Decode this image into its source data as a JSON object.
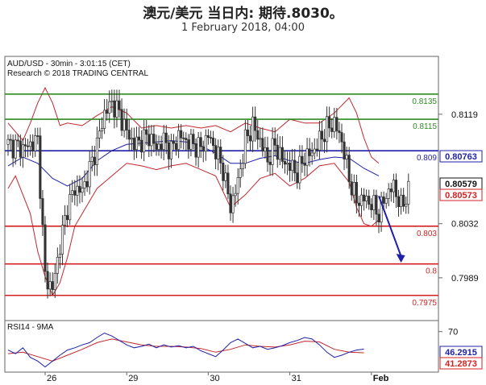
{
  "header": {
    "title": "澳元/美元 当日内: 期待.8030。",
    "subtitle": "1 February 2018, 04:00"
  },
  "chart_data": {
    "type": "candlestick",
    "instrument_label": "AUD/USD - 30min - 3:01:15 (CET)",
    "source_label": "Research © 2018 TRADING CENTRAL",
    "ylim": [
      0.7955,
      0.8165
    ],
    "y_ticks": [
      {
        "value": 0.8119,
        "label": "0.8119"
      },
      {
        "value": 0.8032,
        "label": "0.8032"
      },
      {
        "value": 0.7989,
        "label": "0.7989"
      }
    ],
    "levels": [
      {
        "value": 0.8135,
        "label": "0.8135",
        "color": "#2e8b22"
      },
      {
        "value": 0.8115,
        "label": "0.8115",
        "color": "#2e8b22"
      },
      {
        "value": 0.809,
        "label": "0.809",
        "color": "#1f1fa8"
      },
      {
        "value": 0.803,
        "label": "0.803",
        "color": "#d42222"
      },
      {
        "value": 0.8,
        "label": "0.8",
        "color": "#d42222"
      },
      {
        "value": 0.7975,
        "label": "0.7975",
        "color": "#d42222"
      }
    ],
    "price_badges": [
      {
        "value": 0.80763,
        "label": "0.80763",
        "color": "#1f1fa8"
      },
      {
        "value": 0.80579,
        "label": "0.80579",
        "color": "#111111"
      },
      {
        "value": 0.80573,
        "label": "0.80573",
        "color": "#d42222"
      }
    ],
    "x_labels": [
      {
        "bar": 5,
        "label": "26"
      },
      {
        "bar": 16,
        "label": "29"
      },
      {
        "bar": 27,
        "label": "30"
      },
      {
        "bar": 38,
        "label": "31"
      },
      {
        "bar": 49,
        "label": "Feb"
      }
    ],
    "price_series": [
      [
        0,
        0.8095
      ],
      [
        2,
        0.8092
      ],
      [
        4,
        0.8098
      ],
      [
        5,
        0.799
      ],
      [
        6,
        0.798
      ],
      [
        7,
        0.8015
      ],
      [
        8,
        0.8045
      ],
      [
        9,
        0.806
      ],
      [
        10,
        0.8058
      ],
      [
        11,
        0.8075
      ],
      [
        12,
        0.8095
      ],
      [
        13,
        0.812
      ],
      [
        14,
        0.8128
      ],
      [
        15,
        0.812
      ],
      [
        16,
        0.8105
      ],
      [
        17,
        0.8095
      ],
      [
        18,
        0.8098
      ],
      [
        19,
        0.8102
      ],
      [
        20,
        0.8092
      ],
      [
        21,
        0.8098
      ],
      [
        22,
        0.809
      ],
      [
        23,
        0.8102
      ],
      [
        24,
        0.8098
      ],
      [
        25,
        0.8095
      ],
      [
        26,
        0.8092
      ],
      [
        27,
        0.8102
      ],
      [
        28,
        0.809
      ],
      [
        29,
        0.8075
      ],
      [
        30,
        0.8045
      ],
      [
        31,
        0.8065
      ],
      [
        32,
        0.8098
      ],
      [
        33,
        0.811
      ],
      [
        34,
        0.8098
      ],
      [
        35,
        0.8082
      ],
      [
        36,
        0.8095
      ],
      [
        37,
        0.8082
      ],
      [
        38,
        0.8078
      ],
      [
        39,
        0.8072
      ],
      [
        40,
        0.8085
      ],
      [
        41,
        0.8088
      ],
      [
        42,
        0.8098
      ],
      [
        43,
        0.8108
      ],
      [
        44,
        0.8112
      ],
      [
        45,
        0.8098
      ],
      [
        46,
        0.8068
      ],
      [
        47,
        0.805
      ],
      [
        48,
        0.8052
      ],
      [
        49,
        0.8048
      ],
      [
        50,
        0.804
      ],
      [
        51,
        0.8055
      ],
      [
        52,
        0.8062
      ],
      [
        53,
        0.8045
      ],
      [
        54,
        0.8058
      ]
    ],
    "bollinger_upper": [
      [
        0,
        0.8112
      ],
      [
        2,
        0.8098
      ],
      [
        3,
        0.8112
      ],
      [
        4,
        0.8128
      ],
      [
        5,
        0.814
      ],
      [
        6,
        0.8128
      ],
      [
        7,
        0.811
      ],
      [
        8,
        0.8112
      ],
      [
        10,
        0.811
      ],
      [
        12,
        0.8118
      ],
      [
        14,
        0.8125
      ],
      [
        16,
        0.812
      ],
      [
        18,
        0.8108
      ],
      [
        20,
        0.811
      ],
      [
        22,
        0.8108
      ],
      [
        24,
        0.811
      ],
      [
        26,
        0.8108
      ],
      [
        28,
        0.811
      ],
      [
        30,
        0.8105
      ],
      [
        32,
        0.8112
      ],
      [
        34,
        0.8108
      ],
      [
        36,
        0.8105
      ],
      [
        38,
        0.8115
      ],
      [
        40,
        0.8112
      ],
      [
        42,
        0.8112
      ],
      [
        44,
        0.812
      ],
      [
        46,
        0.8132
      ],
      [
        47,
        0.812
      ],
      [
        48,
        0.81
      ],
      [
        49,
        0.8085
      ],
      [
        50,
        0.808
      ]
    ],
    "bollinger_lower": [
      [
        0,
        0.806
      ],
      [
        1,
        0.807
      ],
      [
        2,
        0.8055
      ],
      [
        3,
        0.804
      ],
      [
        4,
        0.801
      ],
      [
        5,
        0.799
      ],
      [
        6,
        0.7975
      ],
      [
        7,
        0.7985
      ],
      [
        8,
        0.8005
      ],
      [
        9,
        0.803
      ],
      [
        10,
        0.804
      ],
      [
        12,
        0.806
      ],
      [
        14,
        0.807
      ],
      [
        16,
        0.808
      ],
      [
        18,
        0.8078
      ],
      [
        20,
        0.8075
      ],
      [
        22,
        0.8078
      ],
      [
        24,
        0.808
      ],
      [
        26,
        0.8075
      ],
      [
        28,
        0.807
      ],
      [
        30,
        0.8045
      ],
      [
        32,
        0.8055
      ],
      [
        34,
        0.8068
      ],
      [
        36,
        0.8072
      ],
      [
        38,
        0.8062
      ],
      [
        40,
        0.8068
      ],
      [
        42,
        0.8078
      ],
      [
        44,
        0.808
      ],
      [
        46,
        0.8065
      ],
      [
        47,
        0.8045
      ],
      [
        48,
        0.8032
      ],
      [
        49,
        0.803
      ],
      [
        50,
        0.8035
      ]
    ],
    "moving_average": [
      [
        0,
        0.8078
      ],
      [
        2,
        0.8085
      ],
      [
        4,
        0.808
      ],
      [
        6,
        0.8068
      ],
      [
        8,
        0.8062
      ],
      [
        10,
        0.8068
      ],
      [
        12,
        0.8082
      ],
      [
        14,
        0.809
      ],
      [
        16,
        0.8095
      ],
      [
        18,
        0.8096
      ],
      [
        20,
        0.8097
      ],
      [
        22,
        0.8098
      ],
      [
        24,
        0.8097
      ],
      [
        26,
        0.8094
      ],
      [
        28,
        0.8088
      ],
      [
        30,
        0.808
      ],
      [
        32,
        0.808
      ],
      [
        34,
        0.8084
      ],
      [
        36,
        0.8086
      ],
      [
        38,
        0.8082
      ],
      [
        40,
        0.808
      ],
      [
        42,
        0.8083
      ],
      [
        44,
        0.8085
      ],
      [
        46,
        0.8084
      ],
      [
        48,
        0.8076
      ],
      [
        50,
        0.807
      ]
    ],
    "forecast_arrow": {
      "from": [
        50,
        0.8054
      ],
      "to": [
        53,
        0.8001
      ]
    },
    "rsi": {
      "label": "RSI14 - 9MA",
      "ylim": [
        15,
        85
      ],
      "tick": {
        "value": 70,
        "label": "70"
      },
      "badges": [
        {
          "value": 46.2915,
          "label": "46.2915",
          "color": "#1f1fa8"
        },
        {
          "value": 41.2873,
          "label": "41.2873",
          "color": "#d42222"
        }
      ],
      "rsi_series": [
        [
          0,
          45
        ],
        [
          1,
          40
        ],
        [
          2,
          48
        ],
        [
          3,
          35
        ],
        [
          4,
          30
        ],
        [
          5,
          22
        ],
        [
          6,
          30
        ],
        [
          7,
          38
        ],
        [
          8,
          45
        ],
        [
          9,
          48
        ],
        [
          10,
          52
        ],
        [
          11,
          55
        ],
        [
          12,
          62
        ],
        [
          13,
          68
        ],
        [
          14,
          64
        ],
        [
          15,
          58
        ],
        [
          16,
          52
        ],
        [
          17,
          48
        ],
        [
          18,
          50
        ],
        [
          19,
          53
        ],
        [
          20,
          48
        ],
        [
          21,
          52
        ],
        [
          22,
          49
        ],
        [
          23,
          51
        ],
        [
          24,
          48
        ],
        [
          25,
          50
        ],
        [
          26,
          44
        ],
        [
          27,
          40
        ],
        [
          28,
          36
        ],
        [
          29,
          45
        ],
        [
          30,
          55
        ],
        [
          31,
          60
        ],
        [
          32,
          54
        ],
        [
          33,
          48
        ],
        [
          34,
          50
        ],
        [
          35,
          46
        ],
        [
          36,
          48
        ],
        [
          37,
          51
        ],
        [
          38,
          55
        ],
        [
          39,
          58
        ],
        [
          40,
          62
        ],
        [
          41,
          60
        ],
        [
          42,
          52
        ],
        [
          43,
          42
        ],
        [
          44,
          35
        ],
        [
          45,
          38
        ],
        [
          46,
          42
        ],
        [
          47,
          45
        ],
        [
          48,
          46.2915
        ]
      ],
      "ma_series": [
        [
          0,
          40
        ],
        [
          2,
          42
        ],
        [
          4,
          36
        ],
        [
          6,
          30
        ],
        [
          8,
          38
        ],
        [
          10,
          46
        ],
        [
          12,
          55
        ],
        [
          14,
          60
        ],
        [
          16,
          56
        ],
        [
          18,
          52
        ],
        [
          20,
          50
        ],
        [
          22,
          50
        ],
        [
          24,
          49
        ],
        [
          26,
          47
        ],
        [
          28,
          42
        ],
        [
          30,
          46
        ],
        [
          32,
          52
        ],
        [
          34,
          50
        ],
        [
          36,
          49
        ],
        [
          38,
          52
        ],
        [
          40,
          57
        ],
        [
          42,
          56
        ],
        [
          44,
          46
        ],
        [
          46,
          42
        ],
        [
          48,
          41.2873
        ]
      ]
    }
  }
}
